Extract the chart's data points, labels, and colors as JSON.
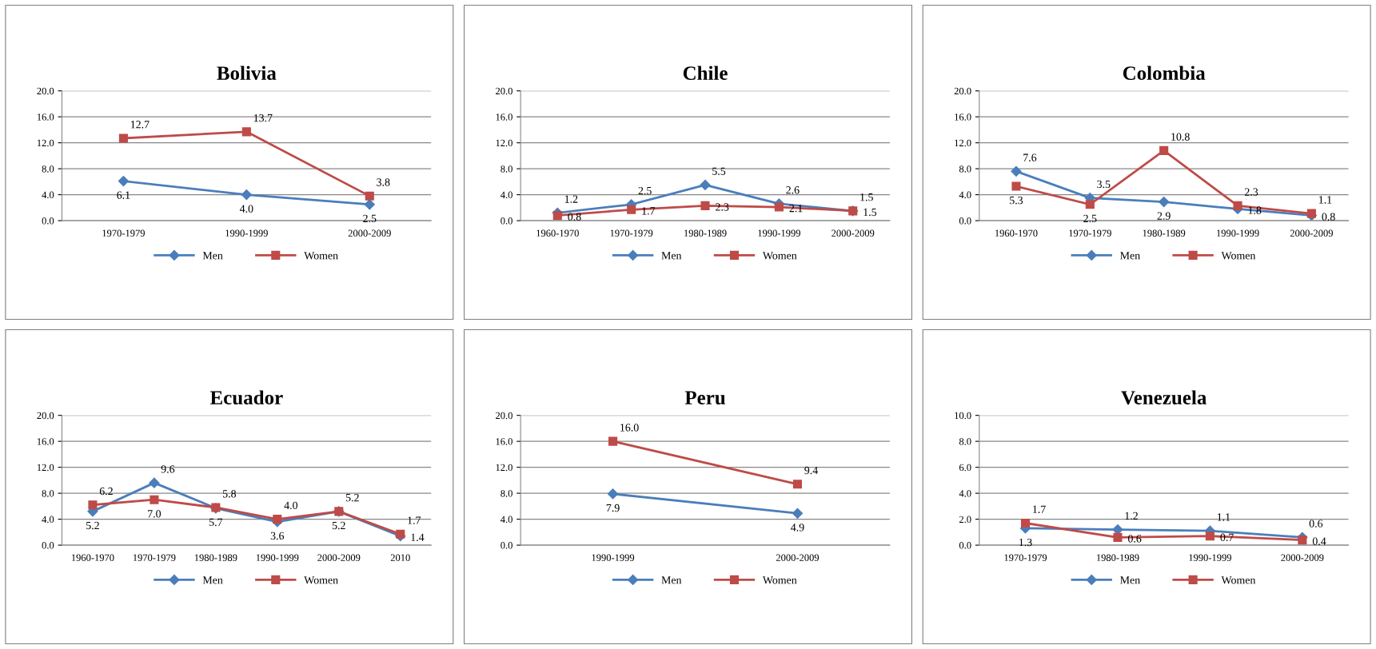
{
  "chart_data": [
    {
      "type": "line",
      "title": "Bolivia",
      "categories": [
        "1970-1979",
        "1990-1999",
        "2000-2009"
      ],
      "ylim": [
        0,
        20
      ],
      "yticks": [
        {
          "value": 0,
          "label": "0.0"
        },
        {
          "value": 4,
          "label": "4.0"
        },
        {
          "value": 8,
          "label": "8.0"
        },
        {
          "value": 12,
          "label": "12.0"
        },
        {
          "value": 16,
          "label": "16.0"
        },
        {
          "value": 20,
          "label": "20.0"
        }
      ],
      "grid": "y",
      "legend": "bottom",
      "series": [
        {
          "name": "Men",
          "color": "#4a7ebb",
          "marker": "diamond",
          "values": [
            6.1,
            4.0,
            2.5
          ],
          "value_labels": [
            "6.1",
            "4.0",
            "2.5"
          ]
        },
        {
          "name": "Women",
          "color": "#be4b48",
          "marker": "square",
          "values": [
            12.7,
            13.7,
            3.8
          ],
          "value_labels": [
            "12.7",
            "13.7",
            "3.8"
          ]
        }
      ]
    },
    {
      "type": "line",
      "title": "Chile",
      "categories": [
        "1960-1970",
        "1970-1979",
        "1980-1989",
        "1990-1999",
        "2000-2009"
      ],
      "ylim": [
        0,
        20
      ],
      "yticks": [
        {
          "value": 0,
          "label": "0.0"
        },
        {
          "value": 4,
          "label": "4.0"
        },
        {
          "value": 8,
          "label": "8.0"
        },
        {
          "value": 12,
          "label": "12.0"
        },
        {
          "value": 16,
          "label": "16.0"
        },
        {
          "value": 20,
          "label": "20.0"
        }
      ],
      "grid": "y",
      "legend": "bottom",
      "series": [
        {
          "name": "Men",
          "color": "#4a7ebb",
          "marker": "diamond",
          "values": [
            1.2,
            2.5,
            5.5,
            2.6,
            1.5
          ],
          "value_labels": [
            "1.2",
            "2.5",
            "5.5",
            "2.6",
            "1.5"
          ]
        },
        {
          "name": "Women",
          "color": "#be4b48",
          "marker": "square",
          "values": [
            0.8,
            1.7,
            2.3,
            2.1,
            1.5
          ],
          "value_labels": [
            "0.8",
            "1.7",
            "2.3",
            "2.1",
            "1.5"
          ]
        }
      ]
    },
    {
      "type": "line",
      "title": "Colombia",
      "categories": [
        "1960-1970",
        "1970-1979",
        "1980-1989",
        "1990-1999",
        "2000-2009"
      ],
      "ylim": [
        0,
        20
      ],
      "yticks": [
        {
          "value": 0,
          "label": "0.0"
        },
        {
          "value": 4,
          "label": "4.0"
        },
        {
          "value": 8,
          "label": "8.0"
        },
        {
          "value": 12,
          "label": "12.0"
        },
        {
          "value": 16,
          "label": "16.0"
        },
        {
          "value": 20,
          "label": "20.0"
        }
      ],
      "grid": "y",
      "legend": "bottom",
      "series": [
        {
          "name": "Men",
          "color": "#4a7ebb",
          "marker": "diamond",
          "values": [
            7.6,
            3.5,
            2.9,
            1.8,
            0.8
          ],
          "value_labels": [
            "7.6",
            "3.5",
            "2.9",
            "1.8",
            "0.8"
          ]
        },
        {
          "name": "Women",
          "color": "#be4b48",
          "marker": "square",
          "values": [
            5.3,
            2.5,
            10.8,
            2.3,
            1.1
          ],
          "value_labels": [
            "5.3",
            "2.5",
            "10.8",
            "2.3",
            "1.1"
          ]
        }
      ]
    },
    {
      "type": "line",
      "title": "Ecuador",
      "categories": [
        "1960-1970",
        "1970-1979",
        "1980-1989",
        "1990-1999",
        "2000-2009",
        "2010"
      ],
      "ylim": [
        0,
        20
      ],
      "yticks": [
        {
          "value": 0,
          "label": "0.0"
        },
        {
          "value": 4,
          "label": "4.0"
        },
        {
          "value": 8,
          "label": "8.0"
        },
        {
          "value": 12,
          "label": "12.0"
        },
        {
          "value": 16,
          "label": "16.0"
        },
        {
          "value": 20,
          "label": "20.0"
        }
      ],
      "grid": "y",
      "legend": "bottom",
      "series": [
        {
          "name": "Men",
          "color": "#4a7ebb",
          "marker": "diamond",
          "values": [
            5.2,
            9.6,
            5.7,
            3.6,
            5.2,
            1.4
          ],
          "value_labels": [
            "5.2",
            "9.6",
            "5.7",
            "3.6",
            "5.2",
            "1.4"
          ]
        },
        {
          "name": "Women",
          "color": "#be4b48",
          "marker": "square",
          "values": [
            6.2,
            7.0,
            5.8,
            4.0,
            5.2,
            1.7
          ],
          "value_labels": [
            "6.2",
            "7.0",
            "5.8",
            "4.0",
            "5.2",
            "1.7"
          ]
        }
      ]
    },
    {
      "type": "line",
      "title": "Peru",
      "categories": [
        "1990-1999",
        "2000-2009"
      ],
      "ylim": [
        0,
        20
      ],
      "yticks": [
        {
          "value": 0,
          "label": "0.0"
        },
        {
          "value": 4,
          "label": "4.0"
        },
        {
          "value": 8,
          "label": "8.0"
        },
        {
          "value": 12,
          "label": "12.0"
        },
        {
          "value": 16,
          "label": "16.0"
        },
        {
          "value": 20,
          "label": "20.0"
        }
      ],
      "grid": "y",
      "legend": "bottom",
      "series": [
        {
          "name": "Men",
          "color": "#4a7ebb",
          "marker": "diamond",
          "values": [
            7.9,
            4.9
          ],
          "value_labels": [
            "7.9",
            "4.9"
          ]
        },
        {
          "name": "Women",
          "color": "#be4b48",
          "marker": "square",
          "values": [
            16.0,
            9.4
          ],
          "value_labels": [
            "16.0",
            "9.4"
          ]
        }
      ]
    },
    {
      "type": "line",
      "title": "Venezuela",
      "categories": [
        "1970-1979",
        "1980-1989",
        "1990-1999",
        "2000-2009"
      ],
      "ylim": [
        0,
        10
      ],
      "yticks": [
        {
          "value": 0,
          "label": "0.0"
        },
        {
          "value": 2,
          "label": "2.0"
        },
        {
          "value": 4,
          "label": "4.0"
        },
        {
          "value": 6,
          "label": "6.0"
        },
        {
          "value": 8,
          "label": "8.0"
        },
        {
          "value": 10,
          "label": "10.0"
        }
      ],
      "grid": "y",
      "legend": "bottom",
      "series": [
        {
          "name": "Men",
          "color": "#4a7ebb",
          "marker": "diamond",
          "values": [
            1.3,
            1.2,
            1.1,
            0.6
          ],
          "value_labels": [
            "1.3",
            "1.2",
            "1.1",
            "0.6"
          ]
        },
        {
          "name": "Women",
          "color": "#be4b48",
          "marker": "square",
          "values": [
            1.7,
            0.6,
            0.7,
            0.4
          ],
          "value_labels": [
            "1.7",
            "0.6",
            "0.7",
            "0.4"
          ]
        }
      ]
    }
  ]
}
